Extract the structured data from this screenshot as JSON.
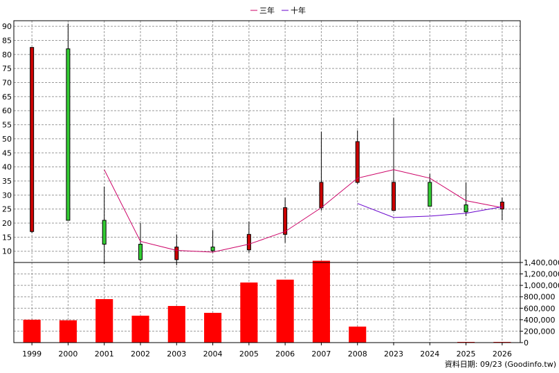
{
  "legend": [
    {
      "name": "三年",
      "color": "#cc0066"
    },
    {
      "name": "十年",
      "color": "#6600cc"
    }
  ],
  "footer_note": "資料日期: 09/23  (Goodinfo.tw)",
  "chart_data": [
    {
      "type": "candlestick",
      "categories": [
        "1999",
        "2000",
        "2001",
        "2002",
        "2003",
        "2004",
        "2005",
        "2006",
        "2007",
        "2008",
        "2023",
        "2024",
        "2025",
        "2026"
      ],
      "ylim": [
        6,
        92
      ],
      "yticks": [
        10,
        15,
        20,
        25,
        30,
        35,
        40,
        45,
        50,
        55,
        60,
        65,
        70,
        75,
        80,
        85,
        90
      ],
      "grid": true,
      "candles": [
        {
          "open": 17,
          "close": 82.5,
          "high": 82.5,
          "low": 16.5,
          "color": "#cc0000"
        },
        {
          "open": 82,
          "close": 21,
          "high": 91,
          "low": 21,
          "color": "#33cc33"
        },
        {
          "open": 21,
          "close": 12.5,
          "high": 33,
          "low": 5.5,
          "color": "#33cc33"
        },
        {
          "open": 12.5,
          "close": 7,
          "high": 20,
          "low": 6.5,
          "color": "#33cc33"
        },
        {
          "open": 7,
          "close": 11.5,
          "high": 16,
          "low": 5,
          "color": "#cc0000"
        },
        {
          "open": 11.5,
          "close": 10.2,
          "high": 17.5,
          "low": 9.5,
          "color": "#33cc33"
        },
        {
          "open": 10.5,
          "close": 16,
          "high": 20.5,
          "low": 9.5,
          "color": "#cc0000"
        },
        {
          "open": 16,
          "close": 25.5,
          "high": 29,
          "low": 13,
          "color": "#cc0000"
        },
        {
          "open": 25.5,
          "close": 34.5,
          "high": 52.5,
          "low": 24.5,
          "color": "#cc0000"
        },
        {
          "open": 34.5,
          "close": 49,
          "high": 53,
          "low": 34,
          "color": "#cc0000"
        },
        {
          "open": 24.5,
          "close": 34.5,
          "high": 57.5,
          "low": 24.5,
          "color": "#cc0000"
        },
        {
          "open": 34.5,
          "close": 26,
          "high": 37.5,
          "low": 26,
          "color": "#33cc33"
        },
        {
          "open": 26.5,
          "close": 24,
          "high": 34.5,
          "low": 22.5,
          "color": "#33cc33"
        },
        {
          "open": 25,
          "close": 27.5,
          "high": 29,
          "low": 21,
          "color": "#cc0000"
        }
      ],
      "series": [
        {
          "name": "三年",
          "color": "#cc0066",
          "values": [
            null,
            null,
            39,
            13.5,
            10.3,
            9.7,
            12.5,
            17,
            25.5,
            36,
            39,
            36,
            28,
            25.5
          ]
        },
        {
          "name": "十年",
          "color": "#6600cc",
          "values": [
            null,
            null,
            null,
            null,
            null,
            null,
            null,
            null,
            null,
            27,
            22,
            22.5,
            23.5,
            25.8
          ]
        }
      ]
    },
    {
      "type": "bar",
      "categories": [
        "1999",
        "2000",
        "2001",
        "2002",
        "2003",
        "2004",
        "2005",
        "2006",
        "2007",
        "2008",
        "2023",
        "2024",
        "2025",
        "2026"
      ],
      "values": [
        400000,
        390000,
        760000,
        470000,
        640000,
        520000,
        1050000,
        1100000,
        1430000,
        280000,
        0,
        0,
        5000,
        5000
      ],
      "ylim": [
        0,
        1400000
      ],
      "yticks": [
        0,
        200000,
        400000,
        600000,
        800000,
        1000000,
        1200000,
        1400000
      ],
      "ytick_labels": [
        "0",
        "200,000",
        "400,000",
        "600,000",
        "800,000",
        "1,000,000",
        "1,200,000",
        "1,400,000"
      ],
      "bar_color": "#ff0000",
      "grid": true
    }
  ]
}
